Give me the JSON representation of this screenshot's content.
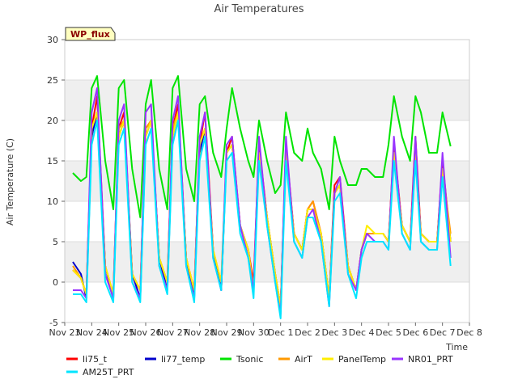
{
  "chart_data": {
    "type": "line",
    "title": "Air Temperatures",
    "badge": "WP_flux",
    "xlabel": "Time",
    "ylabel": "Air Temperature (C)",
    "ylim": [
      -5,
      30
    ],
    "yticks": [
      -5,
      0,
      5,
      10,
      15,
      20,
      25,
      30
    ],
    "xlim": [
      0,
      15
    ],
    "xticks": [
      "Nov 23",
      "Nov 24",
      "Nov 25",
      "Nov 26",
      "Nov 27",
      "Nov 28",
      "Nov 29",
      "Nov 30",
      "Dec 1",
      "Dec 2",
      "Dec 3",
      "Dec 4",
      "Dec 5",
      "Dec 6",
      "Dec 7",
      "Dec 8"
    ],
    "background_bands": "alternating grey",
    "legend_position": "bottom",
    "series": [
      {
        "name": "li75_t",
        "color": "#ff0000",
        "x": [
          0.3,
          0.6,
          0.8,
          1.0,
          1.2,
          1.5,
          1.8,
          2.0,
          2.2,
          2.5,
          2.8,
          3.0,
          3.2,
          3.5,
          3.8,
          4.0,
          4.2,
          4.5,
          4.8,
          5.0,
          5.2,
          5.5,
          5.8,
          6.0,
          6.2,
          6.5,
          6.8,
          7.0,
          7.2,
          7.5,
          7.8,
          8.0,
          8.2,
          8.5,
          8.8,
          9.0,
          9.2,
          9.5,
          9.8,
          10.0,
          10.2,
          10.5,
          10.8,
          11.0,
          11.2,
          11.5,
          11.8,
          12.0,
          12.2,
          12.5,
          12.8,
          13.0,
          13.2,
          13.5,
          13.8,
          14.0,
          14.3
        ],
        "y": [
          1.5,
          0.5,
          -1.5,
          19,
          23,
          2,
          -1.5,
          19,
          21,
          1,
          -1,
          19,
          20,
          3,
          0,
          19,
          22,
          3,
          -1,
          17,
          21,
          4,
          -1,
          16,
          18,
          7,
          4,
          0,
          17,
          8,
          1,
          -3,
          17,
          6,
          4,
          9,
          10,
          6,
          -2,
          12,
          13,
          2,
          -1,
          4,
          6,
          6,
          6,
          5,
          17,
          7,
          5,
          18,
          6,
          5,
          5,
          15,
          5
        ]
      },
      {
        "name": "li77_temp",
        "color": "#0000cc",
        "x": [
          0.3,
          0.6,
          0.8,
          1.0,
          1.2,
          1.5,
          1.8,
          2.0,
          2.2,
          2.5,
          2.8,
          3.0,
          3.2,
          3.5,
          3.8,
          4.0,
          4.2,
          4.5,
          4.8,
          5.0,
          5.2,
          5.5,
          5.8,
          6.0,
          6.2,
          6.5,
          6.8,
          7.0,
          7.2,
          7.5,
          7.8,
          8.0,
          8.2,
          8.5,
          8.8,
          9.0,
          9.2,
          9.5,
          9.8,
          10.0,
          10.2,
          10.5,
          10.8,
          11.0,
          11.2,
          11.5,
          11.8,
          12.0,
          12.2,
          12.5,
          12.8,
          13.0,
          13.2,
          13.5,
          13.8,
          14.0,
          14.3
        ],
        "y": [
          2.5,
          1,
          -2,
          18,
          21,
          2,
          -2,
          18,
          20,
          1,
          -2,
          18,
          20,
          3,
          -1,
          18,
          21,
          3,
          -2,
          16,
          19,
          4,
          -1,
          16,
          17,
          7,
          4,
          -1,
          16,
          8,
          1,
          -3,
          16,
          6,
          4,
          9,
          9,
          6,
          -2,
          11,
          12,
          2,
          -1,
          4,
          6,
          6,
          6,
          5,
          16,
          7,
          5,
          16,
          6,
          5,
          5,
          14,
          5
        ]
      },
      {
        "name": "Tsonic",
        "color": "#00e400",
        "x": [
          0.3,
          0.6,
          0.8,
          1.0,
          1.2,
          1.5,
          1.8,
          2.0,
          2.2,
          2.5,
          2.8,
          3.0,
          3.2,
          3.5,
          3.8,
          4.0,
          4.2,
          4.5,
          4.8,
          5.0,
          5.2,
          5.5,
          5.8,
          6.0,
          6.2,
          6.5,
          6.8,
          7.0,
          7.2,
          7.5,
          7.8,
          8.0,
          8.2,
          8.5,
          8.8,
          9.0,
          9.2,
          9.5,
          9.8,
          10.0,
          10.2,
          10.5,
          10.8,
          11.0,
          11.2,
          11.5,
          11.8,
          12.0,
          12.2,
          12.5,
          12.8,
          13.0,
          13.2,
          13.5,
          13.8,
          14.0,
          14.3
        ],
        "y": [
          13.5,
          12.5,
          13,
          24,
          25.5,
          15,
          9,
          24,
          25,
          14,
          8,
          22,
          25,
          14,
          9,
          24,
          25.5,
          14,
          10,
          22,
          23,
          16,
          13,
          19,
          24,
          19,
          15,
          13,
          20,
          15,
          11,
          12,
          21,
          16,
          15,
          19,
          16,
          14,
          9,
          18,
          15,
          12,
          12,
          14,
          14,
          13,
          13,
          17,
          23,
          18,
          15,
          23,
          21,
          16,
          16,
          21,
          16.8
        ]
      },
      {
        "name": "AirT",
        "color": "#ff9900",
        "x": [
          0.3,
          0.6,
          0.8,
          1.0,
          1.2,
          1.5,
          1.8,
          2.0,
          2.2,
          2.5,
          2.8,
          3.0,
          3.2,
          3.5,
          3.8,
          4.0,
          4.2,
          4.5,
          4.8,
          5.0,
          5.2,
          5.5,
          5.8,
          6.0,
          6.2,
          6.5,
          6.8,
          7.0,
          7.2,
          7.5,
          7.8,
          8.0,
          8.2,
          8.5,
          8.8,
          9.0,
          9.2,
          9.5,
          9.8,
          10.0,
          10.2,
          10.5,
          10.8,
          11.0,
          11.2,
          11.5,
          11.8,
          12.0,
          12.2,
          12.5,
          12.8,
          13.0,
          13.2,
          13.5,
          13.8,
          14.0,
          14.3
        ],
        "y": [
          2,
          0.5,
          -1.5,
          19,
          21,
          2,
          -1.5,
          19,
          20,
          1,
          -1,
          19,
          20,
          3,
          0,
          19,
          21,
          3,
          -1,
          17,
          19,
          4,
          0,
          16,
          17,
          7,
          4,
          -1,
          16,
          8,
          1,
          -3,
          16,
          6,
          4,
          9,
          10,
          6,
          -2,
          11,
          12,
          2,
          -1,
          4,
          6,
          6,
          6,
          5,
          16,
          7,
          5,
          16,
          6,
          5,
          5,
          14,
          6
        ]
      },
      {
        "name": "PanelTemp",
        "color": "#ffee00",
        "x": [
          0.3,
          0.6,
          0.8,
          1.0,
          1.2,
          1.5,
          1.8,
          2.0,
          2.2,
          2.5,
          2.8,
          3.0,
          3.2,
          3.5,
          3.8,
          4.0,
          4.2,
          4.5,
          4.8,
          5.0,
          5.2,
          5.5,
          5.8,
          6.0,
          6.2,
          6.5,
          6.8,
          7.0,
          7.2,
          7.5,
          7.8,
          8.0,
          8.2,
          8.5,
          8.8,
          9.0,
          9.2,
          9.5,
          9.8,
          10.0,
          10.2,
          10.5,
          10.8,
          11.0,
          11.2,
          11.5,
          11.8,
          12.0,
          12.2,
          12.5,
          12.8,
          13.0,
          13.2,
          13.5,
          13.8,
          14.0,
          14.3
        ],
        "y": [
          1.5,
          0.5,
          -1.5,
          19,
          21,
          2,
          -1.5,
          18,
          20,
          1,
          -1,
          18,
          20,
          3,
          0,
          18,
          21,
          3,
          -1,
          17,
          19,
          4,
          0,
          16,
          17,
          7,
          4,
          -1,
          16,
          8,
          1,
          -3,
          16,
          6,
          4,
          9,
          9,
          6,
          -2,
          11,
          12,
          2,
          -1,
          4,
          7,
          6,
          6,
          5,
          16,
          7,
          5,
          16,
          6,
          5,
          5,
          14,
          5
        ]
      },
      {
        "name": "NR01_PRT",
        "color": "#9933ff",
        "x": [
          0.3,
          0.6,
          0.8,
          1.0,
          1.2,
          1.5,
          1.8,
          2.0,
          2.2,
          2.5,
          2.8,
          3.0,
          3.2,
          3.5,
          3.8,
          4.0,
          4.2,
          4.5,
          4.8,
          5.0,
          5.2,
          5.5,
          5.8,
          6.0,
          6.2,
          6.5,
          6.8,
          7.0,
          7.2,
          7.5,
          7.8,
          8.0,
          8.2,
          8.5,
          8.8,
          9.0,
          9.2,
          9.5,
          9.8,
          10.0,
          10.2,
          10.5,
          10.8,
          11.0,
          11.2,
          11.5,
          11.8,
          12.0,
          12.2,
          12.5,
          12.8,
          13.0,
          13.2,
          13.5,
          13.8,
          14.0,
          14.3
        ],
        "y": [
          -1,
          -1,
          -2,
          21,
          24,
          1,
          -2,
          20,
          22,
          0,
          -2,
          21,
          22,
          2,
          -1,
          20,
          23,
          2,
          -2,
          18,
          21,
          3,
          -1,
          17,
          18,
          7,
          3,
          -1,
          18,
          7,
          0,
          -4,
          18,
          5,
          3,
          8,
          9,
          5,
          -3,
          11,
          13,
          1,
          -1,
          4,
          6,
          5,
          5,
          4,
          18,
          6,
          4,
          18,
          5,
          4,
          4,
          16,
          3
        ]
      },
      {
        "name": "AM25T_PRT",
        "color": "#00e5ff",
        "x": [
          0.3,
          0.6,
          0.8,
          1.0,
          1.2,
          1.5,
          1.8,
          2.0,
          2.2,
          2.5,
          2.8,
          3.0,
          3.2,
          3.5,
          3.8,
          4.0,
          4.2,
          4.5,
          4.8,
          5.0,
          5.2,
          5.5,
          5.8,
          6.0,
          6.2,
          6.5,
          6.8,
          7.0,
          7.2,
          7.5,
          7.8,
          8.0,
          8.2,
          8.5,
          8.8,
          9.0,
          9.2,
          9.5,
          9.8,
          10.0,
          10.2,
          10.5,
          10.8,
          11.0,
          11.2,
          11.5,
          11.8,
          12.0,
          12.2,
          12.5,
          12.8,
          13.0,
          13.2,
          13.5,
          13.8,
          14.0,
          14.3
        ],
        "y": [
          -1.5,
          -1.5,
          -2.5,
          17,
          20,
          0,
          -2.5,
          17,
          19,
          0,
          -2.5,
          17,
          19,
          2,
          -1.5,
          17,
          20,
          2,
          -2.5,
          15,
          18,
          3,
          -1,
          15,
          16,
          6,
          3,
          -2,
          15,
          7,
          0,
          -4.5,
          15,
          5,
          3,
          8,
          8,
          5,
          -3,
          10,
          11,
          1,
          -2,
          3,
          5,
          5,
          5,
          4,
          15,
          6,
          4,
          15,
          5,
          4,
          4,
          13,
          2
        ]
      }
    ]
  }
}
